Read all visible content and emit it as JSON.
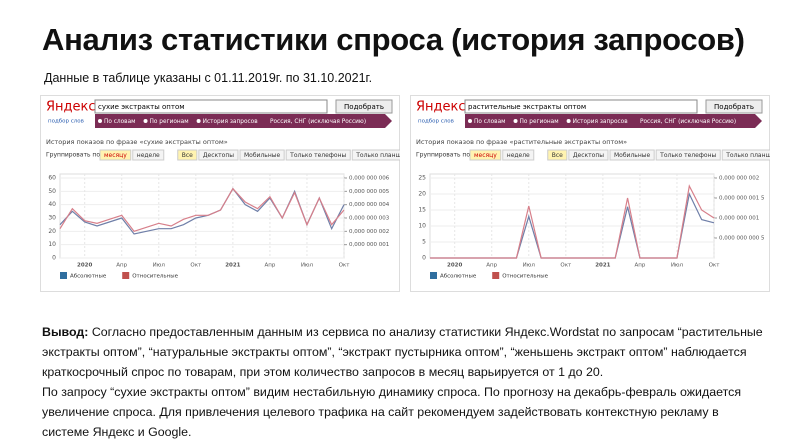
{
  "header": {
    "title": "Анализ статистики спроса (история запросов)",
    "subtitle": "Данные в таблице указаны с 01.11.2019г. по 31.10.2021г."
  },
  "panels": [
    {
      "logo": "Яндекс",
      "logo_sub": "подбор слов",
      "query": "сухие экстракты оптом",
      "button": "Подобрать",
      "radios": [
        "По словам",
        "По регионам",
        "История запросов"
      ],
      "region": "Россия, СНГ (исключая Россию)",
      "history_title": "История показов по фразе «сухие экстракты оптом»",
      "group_label": "Группировать по:",
      "group_options": [
        "месяцу",
        "неделе"
      ],
      "device_tabs": [
        "Все",
        "Десктопы",
        "Мобильные",
        "Только телефоны",
        "Только планшеты"
      ]
    },
    {
      "logo": "Яндекс",
      "logo_sub": "подбор слов",
      "query": "растительные экстракты оптом",
      "button": "Подобрать",
      "radios": [
        "По словам",
        "По регионам",
        "История запросов"
      ],
      "region": "Россия, СНГ (исключая Россию)",
      "history_title": "История показов по фразе «растительные экстракты оптом»",
      "group_label": "Группировать по:",
      "group_options": [
        "месяцу",
        "неделе"
      ],
      "device_tabs": [
        "Все",
        "Десктопы",
        "Мобильные",
        "Только телефоны",
        "Только планшеты"
      ]
    }
  ],
  "chart_data": [
    {
      "type": "line",
      "categories": [
        null,
        null,
        "2020",
        null,
        null,
        "Апр",
        null,
        null,
        "Июл",
        null,
        null,
        "Окт",
        null,
        null,
        "2021",
        null,
        null,
        "Апр",
        null,
        null,
        "Июл",
        null,
        null,
        "Окт"
      ],
      "series": [
        {
          "name": "Абсолютные",
          "color": "#2f6e9f",
          "line_color": "#6f7fa8",
          "values": [
            25,
            35,
            27,
            24,
            27,
            30,
            18,
            20,
            22,
            22,
            25,
            30,
            32,
            36,
            52,
            40,
            35,
            45,
            30,
            50,
            25,
            45,
            22,
            40
          ]
        },
        {
          "name": "Относительные",
          "color": "#c0504d",
          "line_color": "#d77f8a",
          "axis": "y2",
          "values": [
            2.2e-09,
            3.7e-09,
            2.8e-09,
            2.6e-09,
            2.9e-09,
            3.2e-09,
            2e-09,
            2.3e-09,
            2.6e-09,
            2.4e-09,
            2.9e-09,
            3.2e-09,
            3.2e-09,
            3.6e-09,
            5.2e-09,
            4.2e-09,
            3.7e-09,
            4.6e-09,
            3e-09,
            4.9e-09,
            2.5e-09,
            4.5e-09,
            2.5e-09,
            3.6e-09
          ]
        }
      ],
      "ylim": [
        0,
        60
      ],
      "yticks": [
        0,
        10,
        20,
        30,
        40,
        50,
        60
      ],
      "y2lim": [
        0,
        6e-09
      ],
      "y2ticks": [
        {
          "value": 1e-09,
          "label": "0,000 000 001"
        },
        {
          "value": 2e-09,
          "label": "0,000 000 002"
        },
        {
          "value": 3e-09,
          "label": "0,000 000 003"
        },
        {
          "value": 4e-09,
          "label": "0,000 000 004"
        },
        {
          "value": 5e-09,
          "label": "0,000 000 005"
        },
        {
          "value": 6e-09,
          "label": "0,000 000 006"
        }
      ],
      "grid": true,
      "legend": "bottom-left"
    },
    {
      "type": "line",
      "categories": [
        null,
        null,
        "2020",
        null,
        null,
        "Апр",
        null,
        null,
        "Июл",
        null,
        null,
        "Окт",
        null,
        null,
        "2021",
        null,
        null,
        "Апр",
        null,
        null,
        "Июл",
        null,
        null,
        "Окт"
      ],
      "series": [
        {
          "name": "Абсолютные",
          "color": "#2f6e9f",
          "line_color": "#6f7fa8",
          "values": [
            0,
            0,
            0,
            0,
            0,
            0,
            0,
            0,
            13,
            0,
            0,
            0,
            0,
            0,
            0,
            0,
            16,
            0,
            0,
            0,
            0,
            20,
            12,
            11
          ]
        },
        {
          "name": "Относительные",
          "color": "#c0504d",
          "line_color": "#d77f8a",
          "axis": "y2",
          "values": [
            0,
            0,
            0,
            0,
            0,
            0,
            0,
            0,
            1.3e-09,
            0,
            0,
            0,
            0,
            0,
            0,
            0,
            1.5e-09,
            0,
            0,
            0,
            0,
            1.8e-09,
            1.2e-09,
            1e-09
          ]
        }
      ],
      "ylim": [
        0,
        25
      ],
      "yticks": [
        0,
        5,
        10,
        15,
        20,
        25
      ],
      "y2lim": [
        0,
        2e-09
      ],
      "y2ticks": [
        {
          "value": 5e-10,
          "label": "0,000 000 000 5"
        },
        {
          "value": 1e-09,
          "label": "0,000 000 001"
        },
        {
          "value": 1.5e-09,
          "label": "0,000 000 001 5"
        },
        {
          "value": 2e-09,
          "label": "0,000 000 002"
        }
      ],
      "grid": true,
      "legend": "bottom-left"
    }
  ],
  "conclusion": {
    "label": "Вывод:",
    "paragraphs": [
      "Согласно предоставленным данным из сервиса по анализу статистики Яндекс.Wordstat по запросам “растительные экстракты оптом”, “натуральные экстракты оптом”, “экстракт пустырника оптом”, “женьшень экстракт оптом” наблюдается краткосрочный спрос по товарам, при этом количество запросов в месяц варьируется от 1 до 20.",
      "По запросу “сухие экстракты оптом” видим нестабильную динамику спроса. По прогнозу на декабрь-февраль ожидается увеличение спроса. Для привлечения целевого трафика на сайт рекомендуем задействовать контекстную рекламу в системе Яндекс и Google."
    ]
  }
}
